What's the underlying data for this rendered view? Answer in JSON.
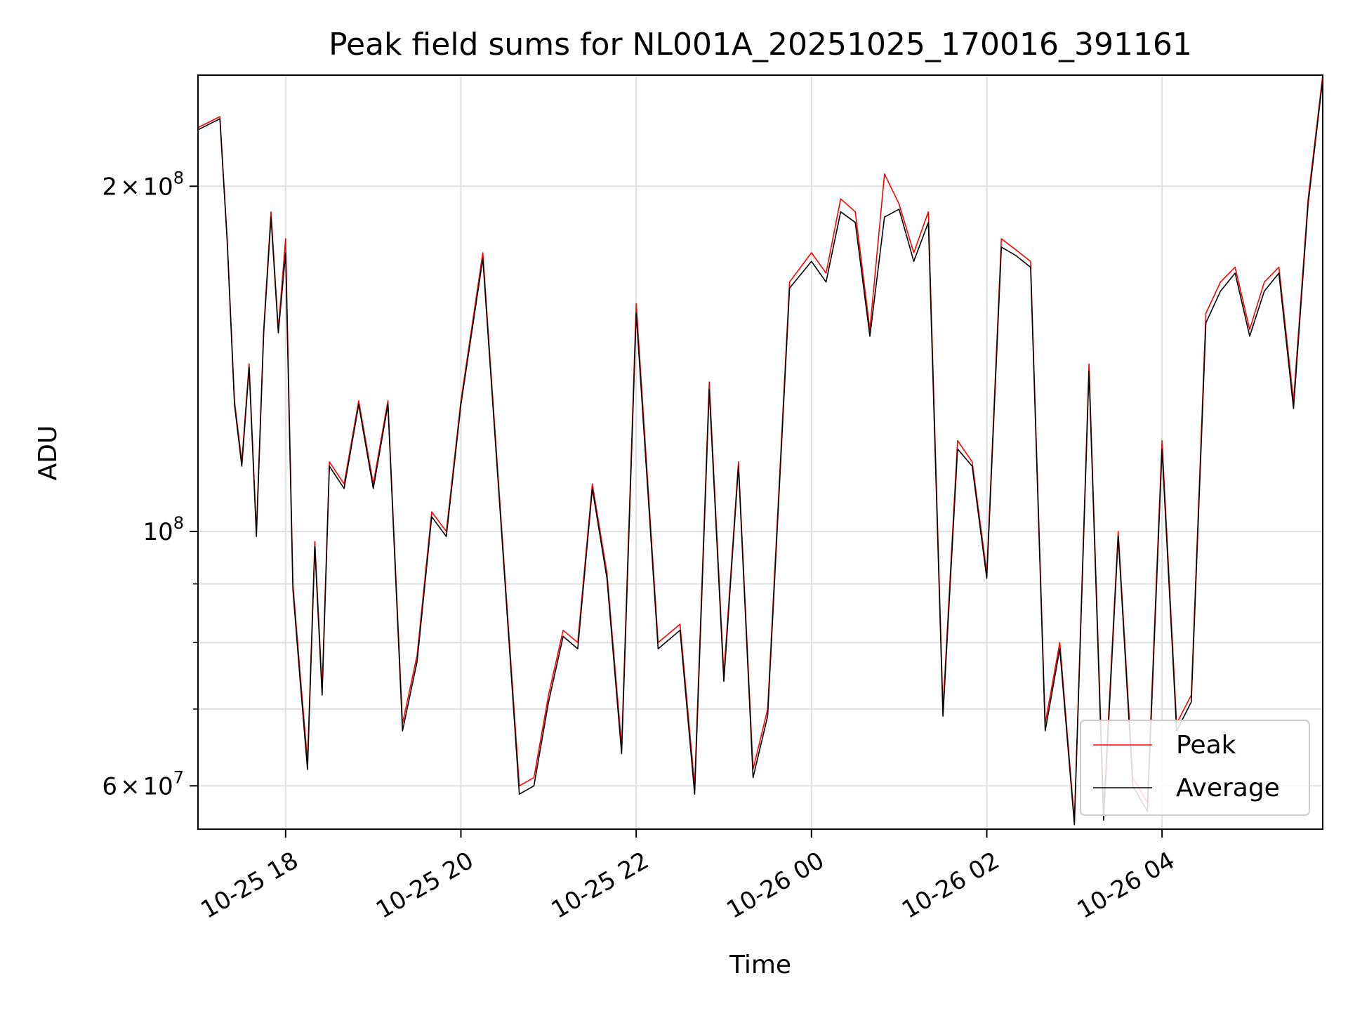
{
  "chart_data": {
    "type": "line",
    "title": "Peak field sums for NL001A_20251025_170016_391161",
    "xlabel": "Time",
    "ylabel": "ADU",
    "x_type": "datetime",
    "xlim": [
      "2025-10-25 17:00",
      "2025-10-26 05:50"
    ],
    "ylim": [
      55000000,
      250000000
    ],
    "y_scale": "log",
    "grid": true,
    "legend_position": "lower-right",
    "x_ticks": [
      {
        "value": "2025-10-25 18:00",
        "label": "10-25 18"
      },
      {
        "value": "2025-10-25 20:00",
        "label": "10-25 20"
      },
      {
        "value": "2025-10-25 22:00",
        "label": "10-25 22"
      },
      {
        "value": "2025-10-26 00:00",
        "label": "10-26 00"
      },
      {
        "value": "2025-10-26 02:00",
        "label": "10-26 02"
      },
      {
        "value": "2025-10-26 04:00",
        "label": "10-26 04"
      }
    ],
    "y_major_ticks": [
      {
        "value": 60000000,
        "mantissa": "6",
        "base": "10",
        "exp": "7"
      },
      {
        "value": 100000000,
        "mantissa": "",
        "base": "10",
        "exp": "8"
      },
      {
        "value": 200000000,
        "mantissa": "2",
        "base": "10",
        "exp": "8"
      }
    ],
    "y_minor_gridlines": [
      70000000,
      80000000,
      90000000
    ],
    "colors": {
      "peak": "#ff0000",
      "average": "#000000"
    },
    "x": [
      "2025-10-25 17:00",
      "2025-10-25 17:15",
      "2025-10-25 17:20",
      "2025-10-25 17:25",
      "2025-10-25 17:30",
      "2025-10-25 17:35",
      "2025-10-25 17:40",
      "2025-10-25 17:45",
      "2025-10-25 17:50",
      "2025-10-25 17:55",
      "2025-10-25 18:00",
      "2025-10-25 18:05",
      "2025-10-25 18:10",
      "2025-10-25 18:15",
      "2025-10-25 18:20",
      "2025-10-25 18:25",
      "2025-10-25 18:30",
      "2025-10-25 18:40",
      "2025-10-25 18:50",
      "2025-10-25 19:00",
      "2025-10-25 19:10",
      "2025-10-25 19:20",
      "2025-10-25 19:30",
      "2025-10-25 19:40",
      "2025-10-25 19:50",
      "2025-10-25 20:00",
      "2025-10-25 20:15",
      "2025-10-25 20:30",
      "2025-10-25 20:40",
      "2025-10-25 20:50",
      "2025-10-25 21:00",
      "2025-10-25 21:10",
      "2025-10-25 21:20",
      "2025-10-25 21:30",
      "2025-10-25 21:40",
      "2025-10-25 21:50",
      "2025-10-25 22:00",
      "2025-10-25 22:15",
      "2025-10-25 22:30",
      "2025-10-25 22:40",
      "2025-10-25 22:50",
      "2025-10-25 23:00",
      "2025-10-25 23:10",
      "2025-10-25 23:20",
      "2025-10-25 23:30",
      "2025-10-25 23:45",
      "2025-10-26 00:00",
      "2025-10-26 00:10",
      "2025-10-26 00:20",
      "2025-10-26 00:30",
      "2025-10-26 00:40",
      "2025-10-26 00:50",
      "2025-10-26 01:00",
      "2025-10-26 01:10",
      "2025-10-26 01:20",
      "2025-10-26 01:30",
      "2025-10-26 01:40",
      "2025-10-26 01:50",
      "2025-10-26 02:00",
      "2025-10-26 02:10",
      "2025-10-26 02:20",
      "2025-10-26 02:30",
      "2025-10-26 02:40",
      "2025-10-26 02:50",
      "2025-10-26 03:00",
      "2025-10-26 03:10",
      "2025-10-26 03:20",
      "2025-10-26 03:30",
      "2025-10-26 03:40",
      "2025-10-26 03:50",
      "2025-10-26 04:00",
      "2025-10-26 04:10",
      "2025-10-26 04:20",
      "2025-10-26 04:30",
      "2025-10-26 04:40",
      "2025-10-26 04:50",
      "2025-10-26 05:00",
      "2025-10-26 05:10",
      "2025-10-26 05:20",
      "2025-10-26 05:30",
      "2025-10-26 05:40",
      "2025-10-26 05:50"
    ],
    "series": [
      {
        "name": "Peak",
        "color": "#ff0000",
        "values": [
          225000000,
          230000000,
          180000000,
          130000000,
          115000000,
          140000000,
          100000000,
          150000000,
          190000000,
          150000000,
          180000000,
          90000000,
          75000000,
          63000000,
          98000000,
          73000000,
          115000000,
          110000000,
          130000000,
          110000000,
          130000000,
          68000000,
          78000000,
          104000000,
          100000000,
          130000000,
          175000000,
          92000000,
          60000000,
          61000000,
          72000000,
          82000000,
          80000000,
          110000000,
          92000000,
          65000000,
          158000000,
          80000000,
          83000000,
          60000000,
          135000000,
          75000000,
          115000000,
          62000000,
          70000000,
          165000000,
          175000000,
          168000000,
          195000000,
          190000000,
          150000000,
          205000000,
          193000000,
          175000000,
          190000000,
          70000000,
          120000000,
          115000000,
          92000000,
          180000000,
          176000000,
          172000000,
          68000000,
          80000000,
          56000000,
          140000000,
          57000000,
          100000000,
          61000000,
          58000000,
          120000000,
          68000000,
          72000000,
          155000000,
          165000000,
          170000000,
          150000000,
          165000000,
          170000000,
          130000000,
          195000000,
          250000000
        ]
      },
      {
        "name": "Average",
        "color": "#000000",
        "values": [
          224000000,
          229000000,
          179000000,
          129000000,
          114000000,
          139000000,
          99000000,
          149000000,
          188000000,
          149000000,
          175000000,
          89000000,
          74000000,
          62000000,
          97000000,
          72000000,
          114000000,
          109000000,
          129000000,
          109000000,
          129000000,
          67000000,
          77000000,
          103000000,
          99000000,
          129000000,
          173000000,
          91000000,
          59000000,
          60000000,
          71000000,
          81000000,
          79000000,
          109000000,
          91000000,
          64000000,
          155000000,
          79000000,
          82000000,
          59000000,
          133000000,
          74000000,
          114000000,
          61000000,
          69000000,
          163000000,
          172000000,
          165000000,
          190000000,
          186000000,
          148000000,
          188000000,
          191000000,
          172000000,
          186000000,
          69000000,
          118000000,
          114000000,
          91000000,
          177000000,
          174000000,
          170000000,
          67000000,
          79000000,
          55500000,
          138000000,
          56000000,
          99000000,
          60000000,
          57000000,
          118000000,
          67000000,
          71000000,
          152000000,
          162000000,
          168000000,
          148000000,
          162000000,
          168000000,
          128000000,
          193000000,
          248000000
        ]
      }
    ]
  }
}
